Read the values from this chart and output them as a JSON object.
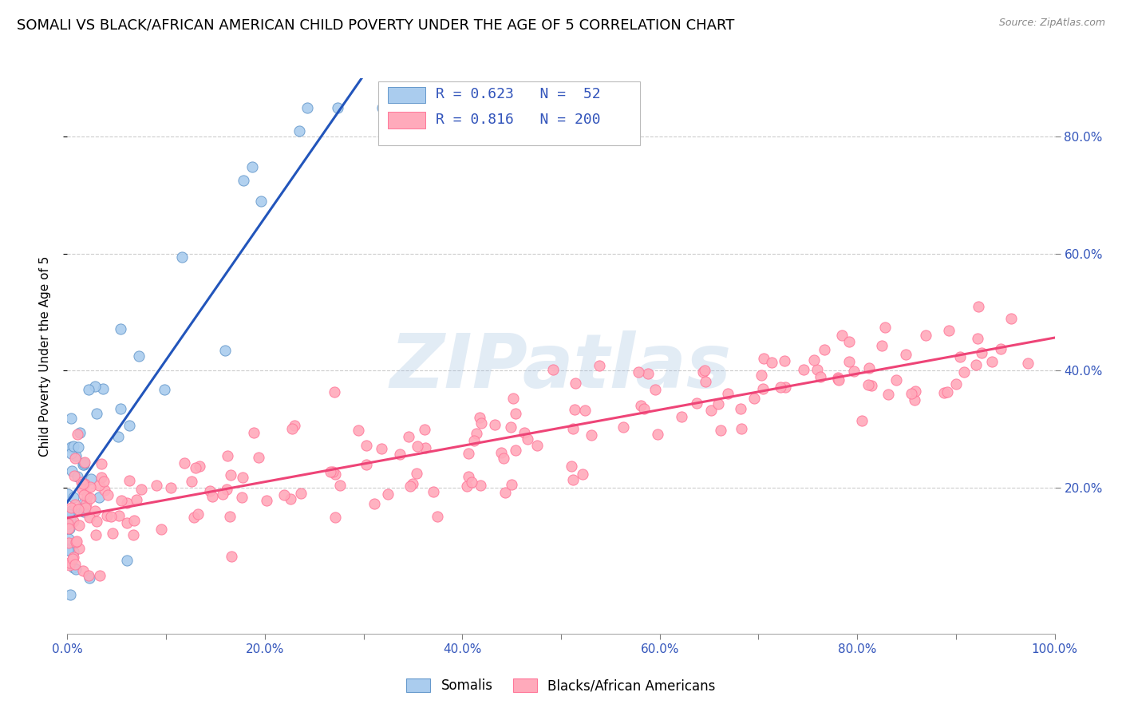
{
  "title": "SOMALI VS BLACK/AFRICAN AMERICAN CHILD POVERTY UNDER THE AGE OF 5 CORRELATION CHART",
  "source": "Source: ZipAtlas.com",
  "ylabel": "Child Poverty Under the Age of 5",
  "xlabel": "",
  "watermark": "ZIPatlas",
  "somali_R": 0.623,
  "somali_N": 52,
  "black_R": 0.816,
  "black_N": 200,
  "somali_dot_fill": "#AACCEE",
  "somali_dot_edge": "#6699CC",
  "black_dot_fill": "#FFAABB",
  "black_dot_edge": "#FF7799",
  "trend_somali_color": "#2255BB",
  "trend_black_color": "#EE4477",
  "label_color": "#3355BB",
  "xlim": [
    0,
    1.0
  ],
  "ylim": [
    -0.05,
    0.9
  ],
  "xticks": [
    0.0,
    0.1,
    0.2,
    0.3,
    0.4,
    0.5,
    0.6,
    0.7,
    0.8,
    0.9,
    1.0
  ],
  "xticklabels": [
    "0.0%",
    "",
    "20.0%",
    "",
    "40.0%",
    "",
    "60.0%",
    "",
    "80.0%",
    "",
    "100.0%"
  ],
  "right_yticks": [
    0.2,
    0.4,
    0.6,
    0.8
  ],
  "right_yticklabels": [
    "20.0%",
    "40.0%",
    "60.0%",
    "80.0%"
  ],
  "legend_somali_label": "Somalis",
  "legend_black_label": "Blacks/African Americans",
  "title_fontsize": 13,
  "tick_fontsize": 11,
  "ylabel_fontsize": 11
}
